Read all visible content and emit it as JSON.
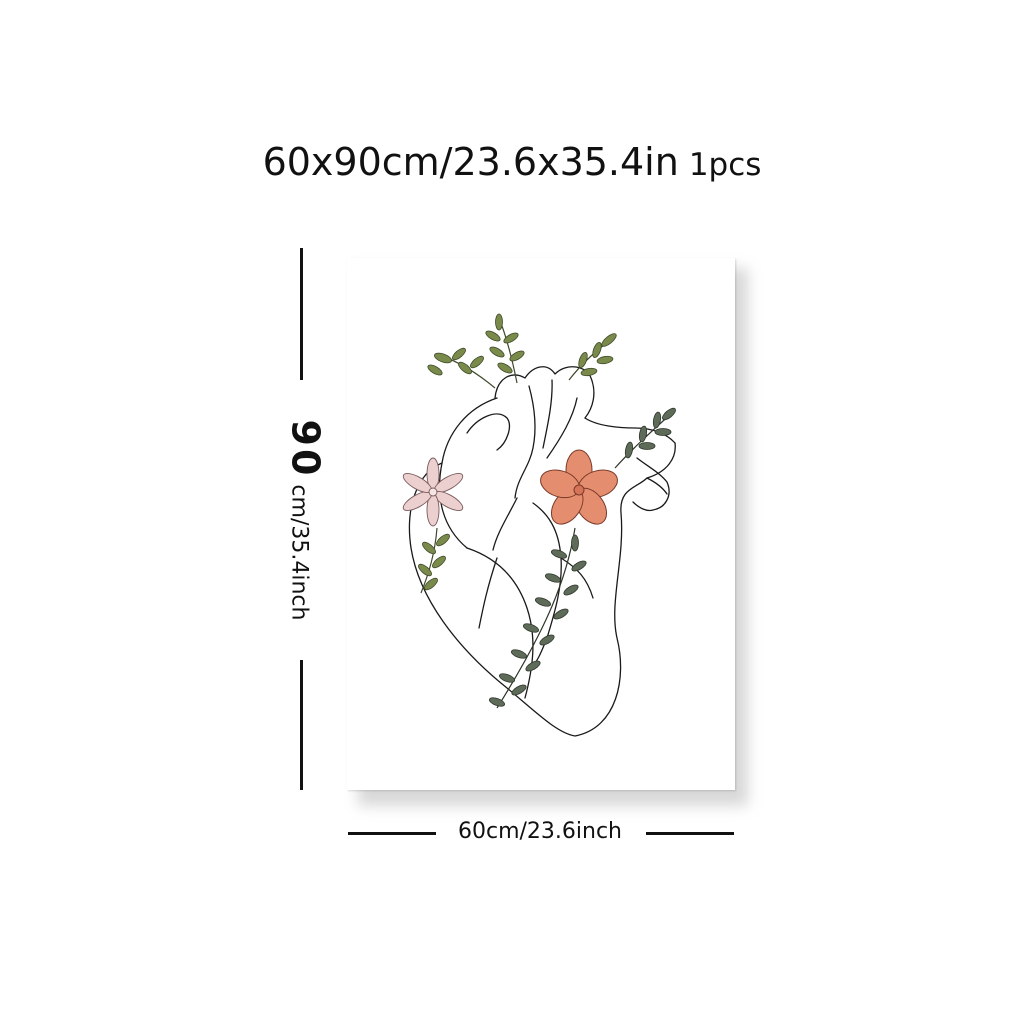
{
  "title": {
    "size": "60x90cm/23.6x35.4in",
    "quantity": "1pcs"
  },
  "height_label": {
    "value": "90",
    "rest": "cm/35.4inch"
  },
  "width_label": "60cm/23.6inch",
  "artwork": {
    "subject": "heart-with-flowers-line-art",
    "colors": {
      "line": "#1a1a1a",
      "leaf_olive": "#7a8a4a",
      "leaf_dark": "#5e6b58",
      "flower_coral": "#e58e6f",
      "flower_pink": "#e8c8c8"
    }
  }
}
